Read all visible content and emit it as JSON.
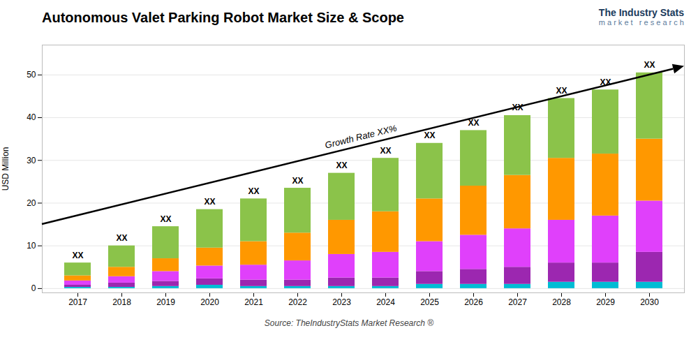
{
  "chart_data": {
    "type": "bar",
    "stacked": true,
    "title": "Autonomous Valet Parking Robot Market Size & Scope",
    "ylabel": "USD Million",
    "source": "Source: TheIndustryStats Market Research ®",
    "logo": [
      "The Industry Stats",
      "m a r k e t   r e s e a r c h"
    ],
    "bar_label": "XX",
    "annotations": [
      {
        "text": "Growth Rate XX%",
        "arrow": [
          15,
          52
        ]
      }
    ],
    "categories": [
      "2017",
      "2018",
      "2019",
      "2020",
      "2021",
      "2022",
      "2023",
      "2024",
      "2025",
      "2026",
      "2027",
      "2028",
      "2029",
      "2030"
    ],
    "series": [
      {
        "color": "#00bcd4",
        "values": [
          0.3,
          0.3,
          0.5,
          0.8,
          0.5,
          0.5,
          0.5,
          0.5,
          1.0,
          1.0,
          1.0,
          1.5,
          1.5,
          1.5
        ]
      },
      {
        "color": "#9c27b0",
        "values": [
          0.5,
          1.0,
          1.2,
          1.5,
          1.5,
          1.5,
          2.0,
          2.0,
          3.0,
          3.5,
          4.0,
          4.5,
          4.5,
          7.0
        ]
      },
      {
        "color": "#e040fb",
        "values": [
          1.0,
          1.5,
          2.3,
          3.0,
          3.5,
          4.5,
          5.5,
          6.0,
          7.0,
          8.0,
          9.0,
          10.0,
          11.0,
          12.0
        ]
      },
      {
        "color": "#ff9800",
        "values": [
          1.2,
          2.2,
          3.0,
          4.2,
          5.5,
          6.5,
          8.0,
          9.5,
          10.0,
          11.5,
          12.5,
          14.5,
          14.5,
          14.5
        ]
      },
      {
        "color": "#8bc34a",
        "values": [
          3.0,
          5.0,
          7.5,
          9.0,
          10.0,
          10.5,
          11.0,
          12.5,
          13.0,
          13.0,
          14.0,
          14.0,
          15.0,
          15.5
        ]
      }
    ],
    "ylim": [
      -1,
      57
    ],
    "yticks": [
      0,
      10,
      20,
      30,
      40,
      50
    ],
    "grid": true
  }
}
